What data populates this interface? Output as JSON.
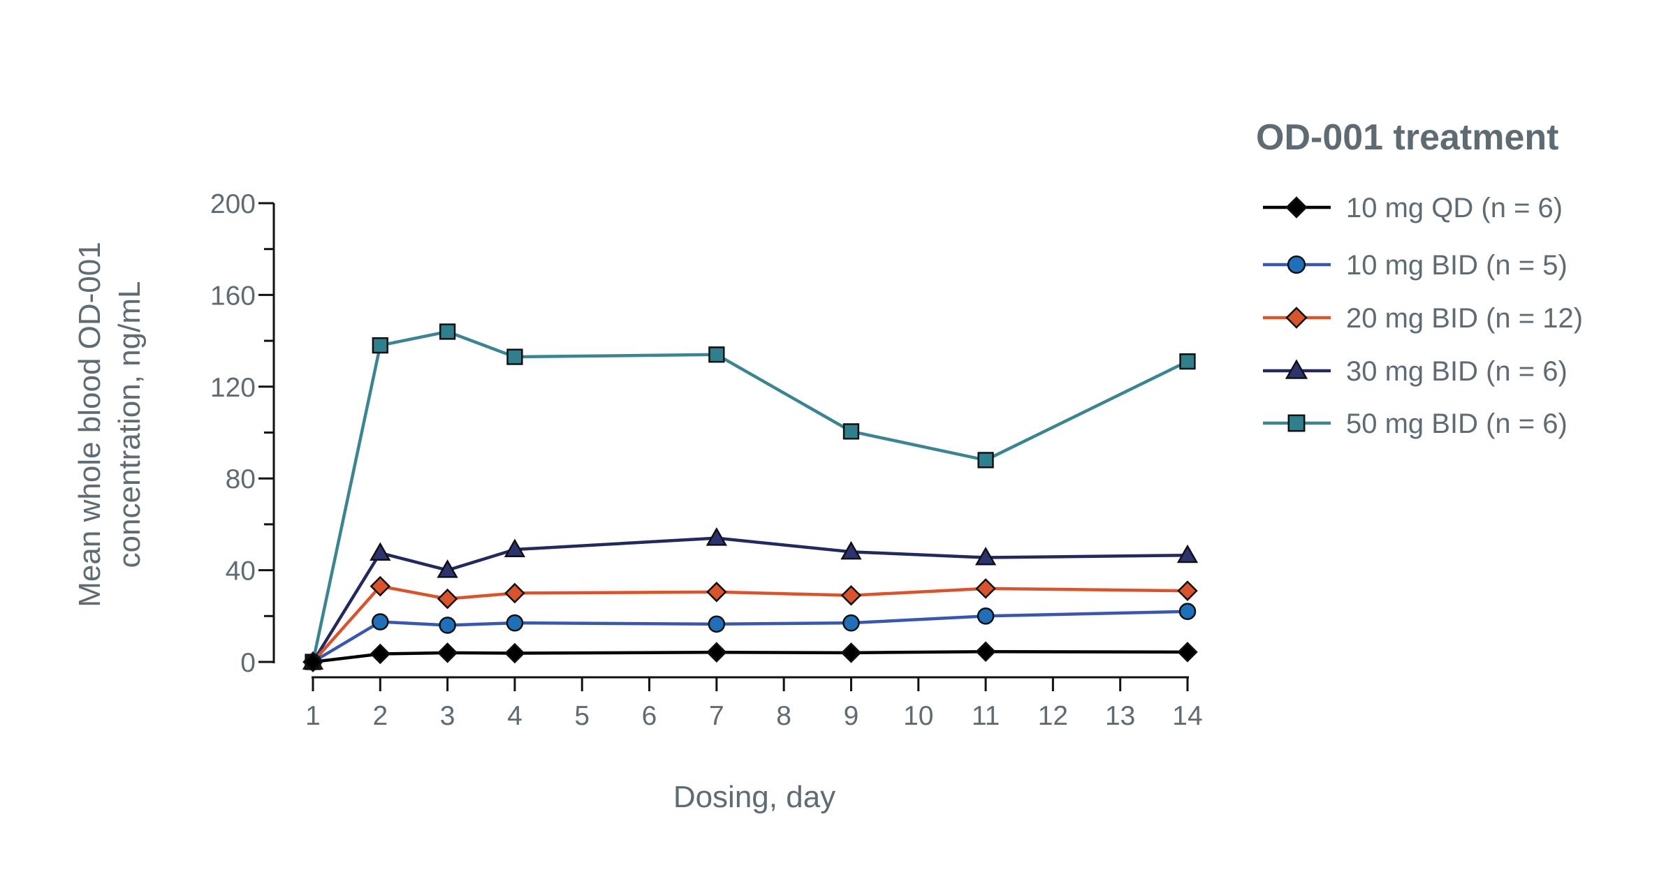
{
  "chart_data": {
    "type": "line",
    "title": "",
    "xlabel": "Dosing, day",
    "ylabel_lines": [
      "Mean whole blood OD-001",
      "concentration, ng/mL"
    ],
    "xlim": [
      1,
      14
    ],
    "ylim": [
      0,
      200
    ],
    "xticks": [
      1,
      2,
      3,
      4,
      5,
      6,
      7,
      8,
      9,
      10,
      11,
      12,
      13,
      14
    ],
    "yticks": [
      0,
      40,
      80,
      120,
      160,
      200
    ],
    "grid": false,
    "legend": {
      "title": "OD-001 treatment",
      "position": "right"
    },
    "x": [
      1,
      2,
      3,
      4,
      7,
      9,
      11,
      14
    ],
    "series": [
      {
        "name": "10 mg QD (n = 6)",
        "color": "#000000",
        "marker": "diamond",
        "values": [
          0,
          3.5,
          4,
          3.8,
          4.2,
          4,
          4.5,
          4.3
        ]
      },
      {
        "name": "10 mg BID (n = 5)",
        "color": "#3a57b0",
        "marker_fill": "#1f6fba",
        "marker": "circle",
        "values": [
          0,
          17.5,
          16,
          17,
          16.5,
          17,
          20,
          22
        ]
      },
      {
        "name": "20 mg BID (n = 12)",
        "color": "#d9542c",
        "marker_fill": "#d9542c",
        "marker": "diamond",
        "values": [
          0,
          33,
          27.5,
          30,
          30.5,
          29,
          32,
          31
        ]
      },
      {
        "name": "30 mg BID (n = 6)",
        "color": "#22295c",
        "marker_fill": "#2c3470",
        "marker": "triangle",
        "values": [
          0,
          47.5,
          40,
          49,
          54,
          48,
          45.5,
          46.5
        ]
      },
      {
        "name": "50 mg BID (n = 6)",
        "color": "#3b8592",
        "marker_fill": "#2f7f8d",
        "marker": "square",
        "values": [
          0,
          138,
          144,
          133,
          134,
          100.5,
          88,
          131
        ]
      }
    ]
  }
}
